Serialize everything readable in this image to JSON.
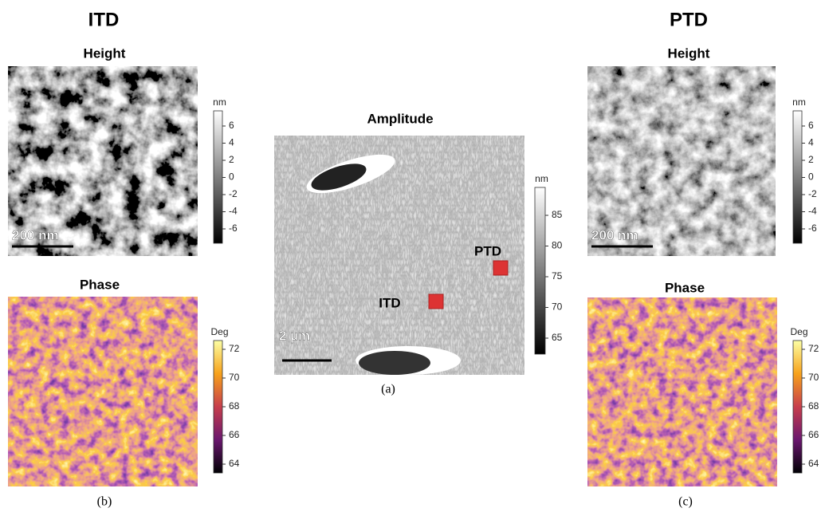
{
  "panels": [
    {
      "title": "ITD",
      "caption": "(b)",
      "height": {
        "label": "Height",
        "unit": "nm",
        "ticks": [
          6,
          4,
          2,
          0,
          -2,
          -4,
          -6
        ],
        "scale_bar": "200 nm"
      },
      "phase": {
        "label": "Phase",
        "unit": "Deg",
        "ticks": [
          72,
          70,
          68,
          66,
          64
        ]
      }
    },
    {
      "title": "PTD",
      "caption": "(c)",
      "height": {
        "label": "Height",
        "unit": "nm",
        "ticks": [
          6,
          4,
          2,
          0,
          -2,
          -4,
          -6
        ],
        "scale_bar": "200 nm"
      },
      "phase": {
        "label": "Phase",
        "unit": "Deg",
        "ticks": [
          72,
          70,
          68,
          66,
          64
        ]
      }
    }
  ],
  "amplitude": {
    "label": "Amplitude",
    "unit": "nm",
    "ticks": [
      85,
      80,
      75,
      70,
      65
    ],
    "scale_bar": "2 µm",
    "markers": [
      "PTD",
      "ITD"
    ],
    "caption": "(a)"
  }
}
